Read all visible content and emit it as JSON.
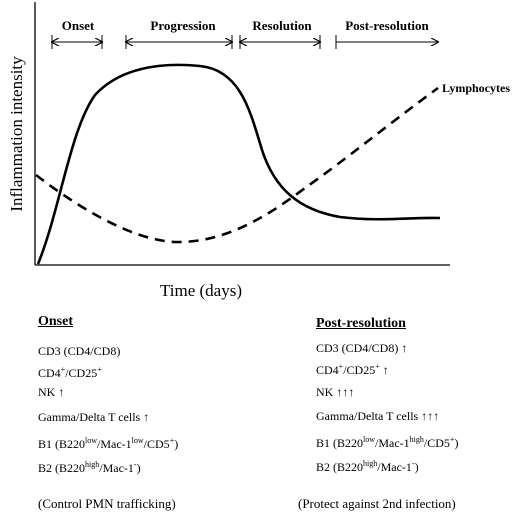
{
  "diagram": {
    "phases": [
      {
        "id": "onset",
        "label": "Onset"
      },
      {
        "id": "progression",
        "label": "Progression"
      },
      {
        "id": "resolution",
        "label": "Resolution"
      },
      {
        "id": "post_resolution",
        "label": "Post-resolution"
      }
    ],
    "y_axis_title": "Inflammation intensity",
    "x_axis_title": "Time (days)",
    "dashed_curve_label": "Lymphocytes",
    "line_style": {
      "solid_curve": "solid",
      "dashed_curve": "dashed"
    },
    "colors": {
      "stroke": "#000000",
      "background": "#ffffff"
    }
  },
  "onset": {
    "title": "Onset",
    "items": [
      {
        "text": "CD3 (CD4/CD8)"
      },
      {
        "pre": "CD4",
        "sup1": "+",
        "mid": "/CD25",
        "sup2": "+",
        "post": ""
      },
      {
        "text": "NK ↑"
      },
      {
        "text": "Gamma/Delta T cells ↑"
      },
      {
        "pre": "B1 (B220",
        "sup1": "low",
        "mid": "/Mac-1",
        "sup2": "low",
        "mid2": "/CD5",
        "sup3": "+",
        "post": ")"
      },
      {
        "pre": "B2 (B220",
        "sup1": "high",
        "mid": "/Mac-1",
        "sup2": "-",
        "post": ")"
      }
    ],
    "footnote": "(Control PMN trafficking)"
  },
  "post_resolution": {
    "title": "Post-resolution",
    "items": [
      {
        "text": "CD3 (CD4/CD8) ↑"
      },
      {
        "pre": "CD4",
        "sup1": "+",
        "mid": "/CD25",
        "sup2": "+",
        "post": " ↑"
      },
      {
        "text": "NK ↑↑↑"
      },
      {
        "text": "Gamma/Delta T cells ↑↑↑"
      },
      {
        "pre": "B1 (B220",
        "sup1": "low",
        "mid": "/Mac-1",
        "sup2": "high",
        "mid2": "/CD5",
        "sup3": "+",
        "post": ")"
      },
      {
        "pre": "B2 (B220",
        "sup1": "high",
        "mid": "/Mac-1",
        "sup2": "-",
        "post": ")"
      }
    ],
    "footnote": "(Protect against 2nd infection)"
  }
}
